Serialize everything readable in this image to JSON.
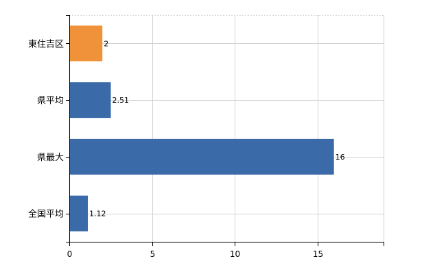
{
  "chart_data": {
    "type": "bar",
    "orientation": "horizontal",
    "categories": [
      "東住吉区",
      "県平均",
      "県最大",
      "全国平均"
    ],
    "values": [
      2,
      2.51,
      16,
      1.12
    ],
    "data_labels": [
      "2",
      "2.51",
      "16",
      "1.12"
    ],
    "bar_colors": [
      "#f0923a",
      "#3a6aa8",
      "#3a6aa8",
      "#3a6aa8"
    ],
    "xlim": [
      0,
      19
    ],
    "x_ticks": [
      0,
      5,
      10,
      15
    ],
    "x_tick_labels": [
      "0",
      "5",
      "10",
      "15"
    ],
    "grid": true,
    "gridline_color": "#d3d3d3",
    "title": "",
    "xlabel": "",
    "ylabel": ""
  }
}
